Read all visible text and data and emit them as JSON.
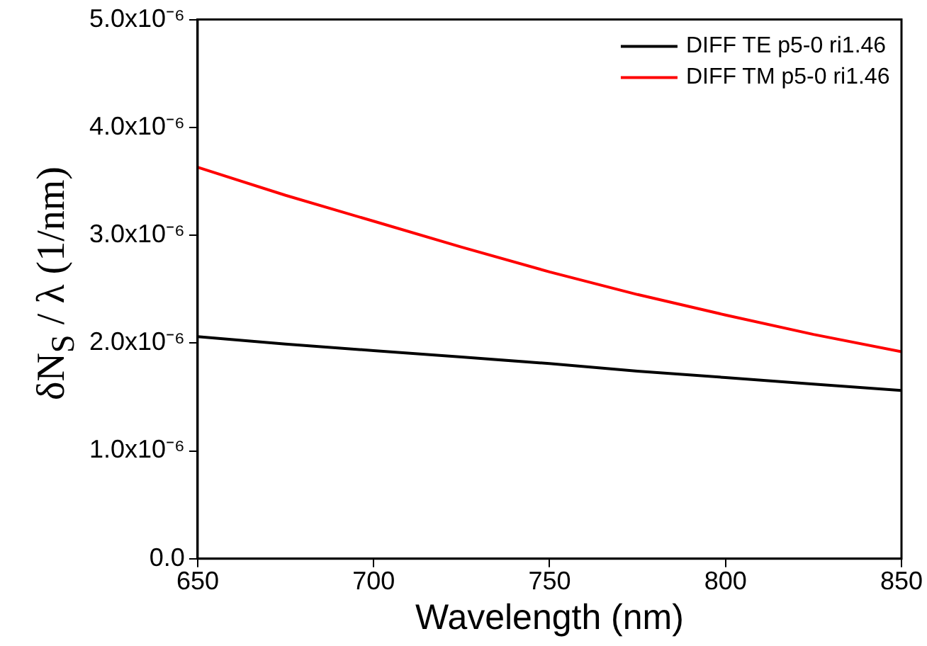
{
  "chart_data": {
    "type": "line",
    "xlabel": "Wavelength (nm)",
    "ylabel": "δN$_{S}$ / λ (1/nm)",
    "x": [
      650,
      675,
      700,
      725,
      750,
      775,
      800,
      825,
      850
    ],
    "series": [
      {
        "name": "DIFF TE p5-0 ri1.46",
        "color": "#000000",
        "values": [
          2.06e-06,
          1.99e-06,
          1.93e-06,
          1.87e-06,
          1.81e-06,
          1.74e-06,
          1.68e-06,
          1.62e-06,
          1.56e-06
        ]
      },
      {
        "name": "DIFF TM p5-0 ri1.46",
        "color": "#ff0000",
        "values": [
          3.63e-06,
          3.37e-06,
          3.13e-06,
          2.89e-06,
          2.66e-06,
          2.45e-06,
          2.26e-06,
          2.08e-06,
          1.92e-06
        ]
      }
    ],
    "xlim": [
      650,
      850
    ],
    "xticks": [
      650,
      700,
      750,
      800,
      850
    ],
    "ylim": [
      0,
      5e-06
    ],
    "yticks": [
      {
        "value": 0,
        "label": "0.0"
      },
      {
        "value": 1e-06,
        "label": "1.0x10⁻⁶"
      },
      {
        "value": 2e-06,
        "label": "2.0x10⁻⁶"
      },
      {
        "value": 3e-06,
        "label": "3.0x10⁻⁶"
      },
      {
        "value": 4e-06,
        "label": "4.0x10⁻⁶"
      },
      {
        "value": 5e-06,
        "label": "5.0x10⁻⁶"
      }
    ],
    "grid": false,
    "legend": "top right",
    "marker": "none",
    "line_style": "solid"
  }
}
